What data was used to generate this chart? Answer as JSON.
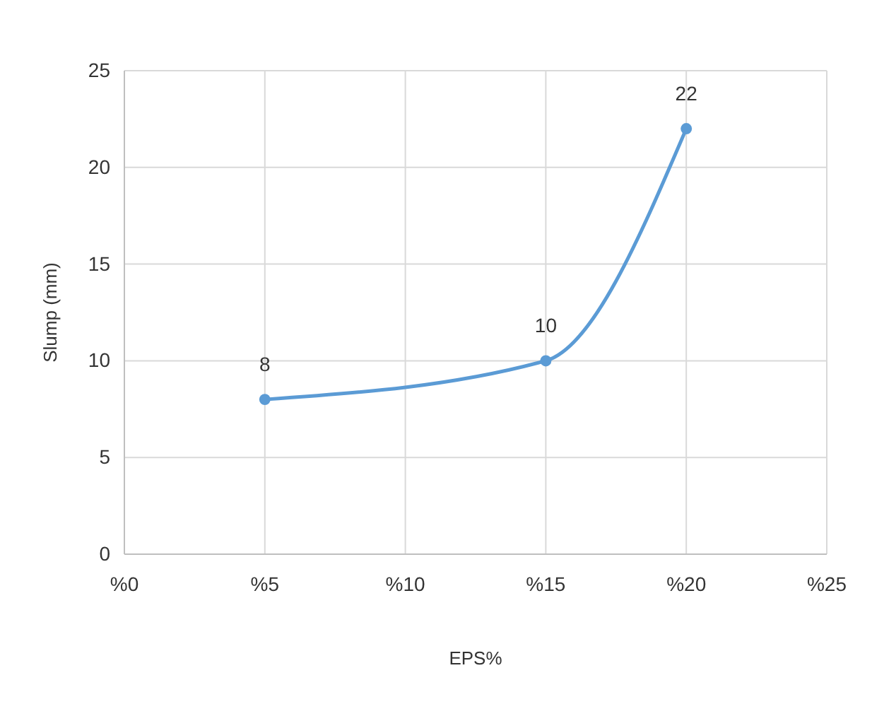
{
  "chart_data": {
    "type": "line",
    "xlabel": "EPS%",
    "ylabel": "Slump (mm)",
    "x": [
      5,
      15,
      20
    ],
    "series": [
      {
        "color": "#5b9bd5",
        "values": [
          8,
          10,
          22
        ]
      }
    ],
    "xlim": [
      0,
      25
    ],
    "xticks": [
      {
        "value": 0,
        "label": "%0"
      },
      {
        "value": 5,
        "label": "%5"
      },
      {
        "value": 10,
        "label": "%10"
      },
      {
        "value": 15,
        "label": "%15"
      },
      {
        "value": 20,
        "label": "%20"
      },
      {
        "value": 25,
        "label": "%25"
      }
    ],
    "ylim": [
      0,
      25
    ],
    "yticks": [
      0,
      5,
      10,
      15,
      20,
      25
    ],
    "grid": true,
    "marker": "circle",
    "data_labels": true,
    "line_style": "solid"
  }
}
